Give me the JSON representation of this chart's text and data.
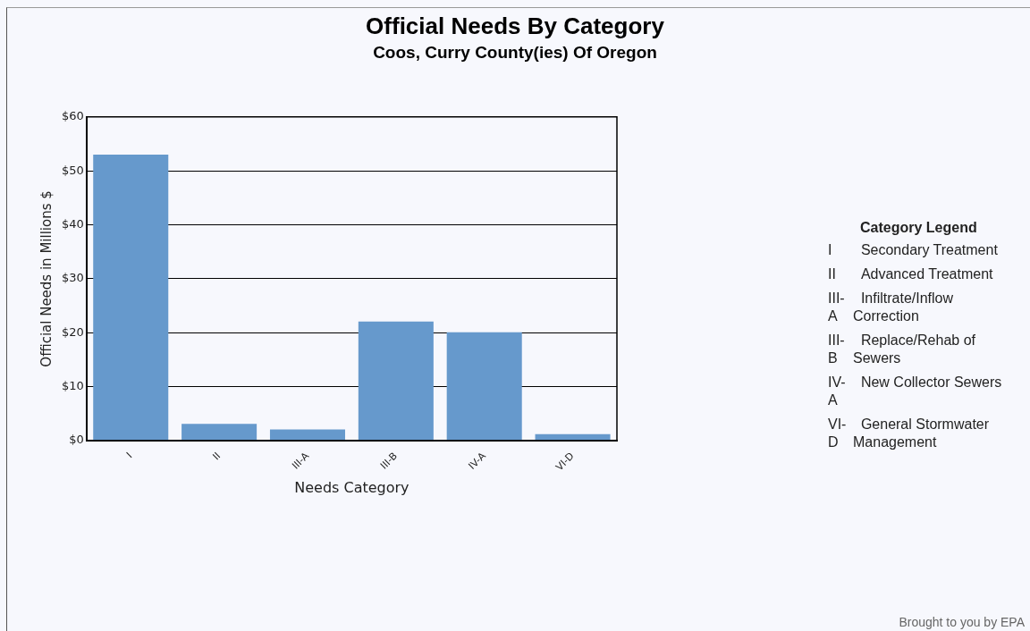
{
  "chart_data": {
    "type": "bar",
    "title": "Official Needs By Category",
    "subtitle": "Coos, Curry County(ies) Of Oregon",
    "xlabel": "Needs Category",
    "ylabel": "Official Needs in Millions $",
    "categories": [
      "I",
      "II",
      "III-A",
      "III-B",
      "IV-A",
      "VI-D"
    ],
    "values": [
      53,
      3.1,
      2.1,
      22.1,
      20.1,
      1.2
    ],
    "color": "#6699cc",
    "ylim": [
      0,
      60
    ],
    "yticks": [
      {
        "value": 0,
        "label": "$0"
      },
      {
        "value": 10,
        "label": "$10"
      },
      {
        "value": 20,
        "label": "$20"
      },
      {
        "value": 30,
        "label": "$30"
      },
      {
        "value": 40,
        "label": "$40"
      },
      {
        "value": 50,
        "label": "$50"
      },
      {
        "value": 60,
        "label": "$60"
      }
    ],
    "grid": "y",
    "annotations": [
      "Category Legend",
      "Secondary Treatment",
      "Advanced Treatment",
      "Infiltrate/Inflow Correction",
      "Replace/Rehab of Sewers",
      "New Collector Sewers",
      "General Stormwater Management",
      "Brought to you by EPA"
    ]
  }
}
